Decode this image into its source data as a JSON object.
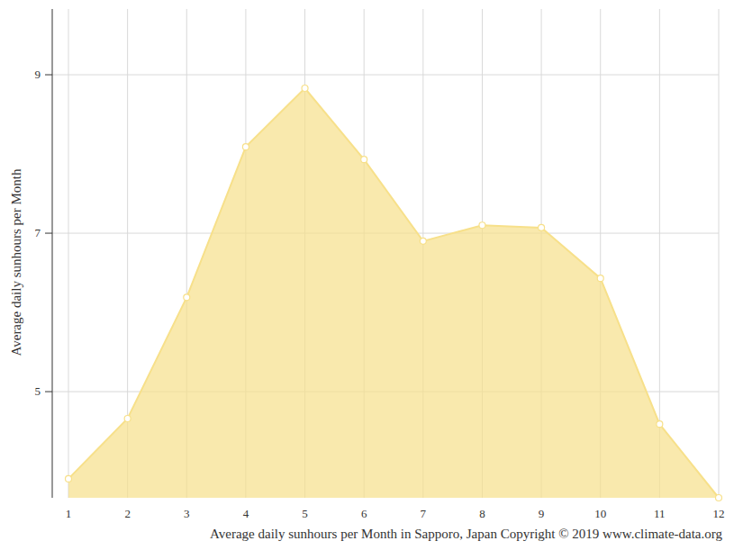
{
  "chart_data": {
    "type": "area",
    "x_label": "Average daily sunhours per Month in Sapporo, Japan Copyright © 2019 www.climate-data.org",
    "y_label": "Average daily sunhours per Month",
    "x": [
      1,
      2,
      3,
      4,
      5,
      6,
      7,
      8,
      9,
      10,
      11,
      12
    ],
    "values": [
      3.9,
      4.66,
      6.19,
      8.09,
      8.83,
      7.93,
      6.9,
      7.1,
      7.07,
      6.43,
      4.59,
      3.66
    ],
    "color": "#f7e08a",
    "xlim": [
      1,
      12
    ],
    "xticks": [
      1,
      2,
      3,
      4,
      5,
      6,
      7,
      8,
      9,
      10,
      11,
      12
    ],
    "ylim": [
      3.66,
      9.83
    ],
    "yticks": [
      5,
      7,
      9
    ],
    "grid": true,
    "marker": "circle"
  }
}
